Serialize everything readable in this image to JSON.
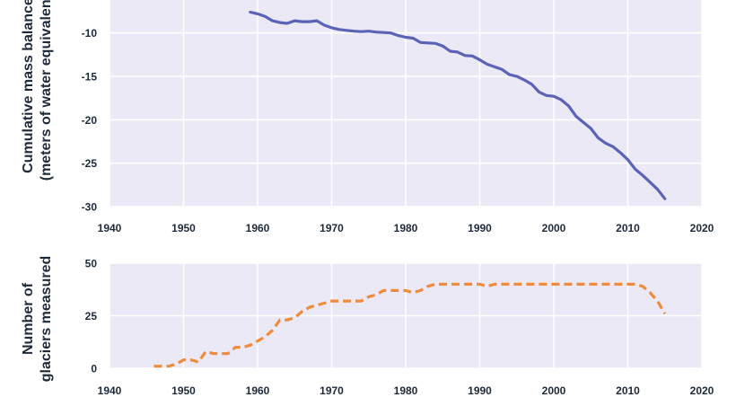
{
  "chart_data": [
    {
      "type": "line",
      "ylabel_lines": [
        "Cumulative mass balance",
        "(meters of water equivalent)"
      ],
      "xlim": [
        1940,
        2020
      ],
      "ylim": [
        -30,
        -6
      ],
      "xticks": [
        1940,
        1950,
        1960,
        1970,
        1980,
        1990,
        2000,
        2010,
        2020
      ],
      "yticks": [
        -10,
        -15,
        -20,
        -25,
        -30
      ],
      "grid": true,
      "line_color": "#5b63b7",
      "background": "#ece9f6",
      "series": [
        {
          "x": [
            1959,
            1960,
            1961,
            1962,
            1963,
            1964,
            1965,
            1966,
            1967,
            1968,
            1969,
            1970,
            1971,
            1972,
            1973,
            1974,
            1975,
            1976,
            1977,
            1978,
            1979,
            1980,
            1981,
            1982,
            1983,
            1984,
            1985,
            1986,
            1987,
            1988,
            1989,
            1990,
            1991,
            1992,
            1993,
            1994,
            1995,
            1996,
            1997,
            1998,
            1999,
            2000,
            2001,
            2002,
            2003,
            2004,
            2005,
            2006,
            2007,
            2008,
            2009,
            2010,
            2011,
            2012,
            2013,
            2014,
            2015
          ],
          "y": [
            -7.6,
            -7.8,
            -8.1,
            -8.6,
            -8.8,
            -8.9,
            -8.6,
            -8.7,
            -8.7,
            -8.6,
            -9.1,
            -9.4,
            -9.6,
            -9.7,
            -9.8,
            -9.85,
            -9.8,
            -9.9,
            -9.95,
            -10.0,
            -10.3,
            -10.5,
            -10.6,
            -11.1,
            -11.15,
            -11.2,
            -11.5,
            -12.1,
            -12.2,
            -12.6,
            -12.65,
            -13.1,
            -13.6,
            -13.9,
            -14.2,
            -14.8,
            -15.0,
            -15.4,
            -15.9,
            -16.8,
            -17.2,
            -17.3,
            -17.7,
            -18.4,
            -19.6,
            -20.3,
            -21.0,
            -22.1,
            -22.7,
            -23.1,
            -23.8,
            -24.6,
            -25.7,
            -26.4,
            -27.2,
            -28.0,
            -29.1
          ]
        }
      ]
    },
    {
      "type": "line",
      "ylabel_lines": [
        "Number of",
        "glaciers measured"
      ],
      "xlim": [
        1940,
        2020
      ],
      "ylim": [
        0,
        50
      ],
      "xticks": [
        1940,
        1950,
        1960,
        1970,
        1980,
        1990,
        2000,
        2010,
        2020
      ],
      "yticks": [
        0,
        25,
        50
      ],
      "grid": true,
      "dashed": true,
      "line_color": "#ef8b3c",
      "background": "#ece9f6",
      "series": [
        {
          "x": [
            1946,
            1947,
            1948,
            1949,
            1950,
            1951,
            1952,
            1953,
            1954,
            1955,
            1956,
            1957,
            1958,
            1959,
            1960,
            1961,
            1962,
            1963,
            1964,
            1965,
            1966,
            1967,
            1968,
            1969,
            1970,
            1971,
            1972,
            1973,
            1974,
            1975,
            1976,
            1977,
            1978,
            1979,
            1980,
            1981,
            1982,
            1983,
            1984,
            1985,
            1986,
            1987,
            1988,
            1989,
            1990,
            1991,
            1992,
            1993,
            1994,
            1995,
            1996,
            1997,
            1998,
            1999,
            2000,
            2001,
            2002,
            2003,
            2004,
            2005,
            2006,
            2007,
            2008,
            2009,
            2010,
            2011,
            2012,
            2013,
            2014,
            2015
          ],
          "y": [
            1,
            1,
            1,
            2,
            4,
            4,
            3,
            8,
            7,
            7,
            7,
            10,
            10,
            11,
            13,
            15,
            18,
            23,
            23,
            24,
            27,
            29,
            30,
            31,
            32,
            32,
            32,
            32,
            32,
            34,
            35,
            37,
            37,
            37,
            37,
            36,
            37,
            39,
            40,
            40,
            40,
            40,
            40,
            40,
            40,
            39,
            40,
            40,
            40,
            40,
            40,
            40,
            40,
            40,
            40,
            40,
            40,
            40,
            40,
            40,
            40,
            40,
            40,
            40,
            40,
            40,
            39,
            36,
            32,
            26
          ]
        }
      ]
    }
  ]
}
